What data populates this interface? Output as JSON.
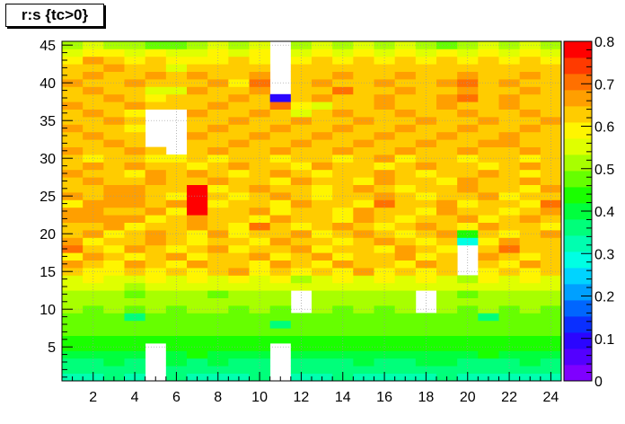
{
  "chart_data": {
    "type": "heatmap",
    "title": "r:s {tc>0}",
    "xlabel": "",
    "ylabel": "",
    "xlim": [
      0.5,
      24.5
    ],
    "ylim": [
      0.5,
      45.5
    ],
    "zlim": [
      0,
      0.8
    ],
    "grid": true,
    "x_ticks": [
      2,
      4,
      6,
      8,
      10,
      12,
      14,
      16,
      18,
      20,
      22,
      24
    ],
    "y_ticks": [
      5,
      10,
      15,
      20,
      25,
      30,
      35,
      40,
      45
    ],
    "z_ticks": [
      0,
      0.1,
      0.2,
      0.3,
      0.4,
      0.5,
      0.6,
      0.7,
      0.8
    ],
    "palette": [
      "#7f00ff",
      "#5300ff",
      "#2b05ff",
      "#0a2fff",
      "#0066ff",
      "#00a0ff",
      "#00d4ff",
      "#00ffe4",
      "#00ffb0",
      "#00ff7a",
      "#00ff3e",
      "#1aff00",
      "#66ff00",
      "#a8ff00",
      "#dfff00",
      "#fff500",
      "#ffcc00",
      "#ff9f00",
      "#ff7000",
      "#ff3a00",
      "#ff0000"
    ],
    "s_values": [
      1,
      2,
      3,
      4,
      5,
      6,
      7,
      8,
      9,
      10,
      11,
      12,
      13,
      14,
      15,
      16,
      17,
      18,
      19,
      20,
      21,
      22,
      23,
      24
    ],
    "r_values": [
      1,
      2,
      3,
      4,
      5,
      6,
      7,
      8,
      9,
      10,
      11,
      12,
      13,
      14,
      15,
      16,
      17,
      18,
      19,
      20,
      21,
      22,
      23,
      24,
      25,
      26,
      27,
      28,
      29,
      30,
      31,
      32,
      33,
      34,
      35,
      36,
      37,
      38,
      39,
      40,
      41,
      42,
      43,
      44,
      45
    ],
    "z_rows": [
      [
        0.33,
        0.33,
        0.35,
        0.34,
        null,
        0.35,
        0.34,
        0.33,
        0.34,
        0.35,
        null,
        0.33,
        0.33,
        0.35,
        0.34,
        0.34,
        0.33,
        0.34,
        0.35,
        0.33,
        0.34,
        0.33,
        0.33,
        0.34
      ],
      [
        0.35,
        0.35,
        0.37,
        0.36,
        null,
        0.37,
        0.36,
        0.35,
        0.36,
        0.37,
        null,
        0.35,
        0.36,
        0.36,
        0.36,
        0.35,
        0.35,
        0.36,
        0.35,
        0.36,
        0.35,
        0.37,
        0.36,
        0.35
      ],
      [
        0.38,
        0.38,
        0.39,
        0.38,
        null,
        0.39,
        0.38,
        0.39,
        0.38,
        0.38,
        null,
        0.38,
        0.38,
        0.38,
        0.39,
        0.38,
        0.38,
        0.39,
        0.39,
        0.38,
        0.38,
        0.38,
        0.39,
        0.38
      ],
      [
        0.4,
        0.41,
        0.4,
        0.41,
        null,
        0.41,
        0.42,
        0.4,
        0.41,
        0.41,
        null,
        0.41,
        0.41,
        0.4,
        0.41,
        0.41,
        0.41,
        0.4,
        0.4,
        0.41,
        0.42,
        0.41,
        0.4,
        0.41
      ],
      [
        0.42,
        0.43,
        0.43,
        0.42,
        null,
        0.44,
        0.43,
        0.42,
        0.43,
        0.42,
        null,
        0.43,
        0.43,
        0.42,
        0.43,
        0.43,
        0.43,
        0.44,
        0.42,
        0.43,
        0.44,
        0.43,
        0.42,
        0.43
      ],
      [
        0.44,
        0.45,
        0.44,
        0.44,
        0.43,
        0.45,
        0.45,
        0.44,
        0.44,
        0.45,
        0.44,
        0.44,
        0.45,
        0.44,
        0.44,
        0.45,
        0.45,
        0.44,
        0.44,
        0.45,
        0.44,
        0.44,
        0.45,
        0.44
      ],
      [
        0.46,
        0.47,
        0.46,
        0.46,
        0.47,
        0.46,
        0.47,
        0.46,
        0.47,
        0.46,
        0.47,
        0.46,
        0.46,
        0.47,
        0.46,
        0.47,
        0.46,
        0.46,
        0.47,
        0.46,
        0.47,
        0.46,
        0.47,
        0.46
      ],
      [
        0.47,
        0.48,
        0.47,
        0.47,
        0.48,
        0.47,
        0.48,
        0.47,
        0.48,
        0.47,
        0.38,
        0.47,
        0.47,
        0.48,
        0.47,
        0.48,
        0.47,
        0.48,
        0.47,
        0.48,
        0.47,
        0.48,
        0.47,
        0.48
      ],
      [
        0.49,
        0.49,
        0.48,
        0.38,
        0.49,
        0.49,
        0.48,
        0.49,
        0.49,
        0.48,
        0.49,
        0.49,
        0.48,
        0.49,
        0.49,
        0.48,
        0.49,
        0.49,
        0.48,
        0.49,
        0.38,
        0.49,
        0.49,
        0.48
      ],
      [
        0.5,
        0.49,
        0.5,
        0.48,
        0.5,
        0.49,
        0.5,
        0.5,
        0.49,
        0.5,
        0.49,
        null,
        0.5,
        0.49,
        0.5,
        0.49,
        0.5,
        null,
        0.5,
        0.49,
        0.5,
        0.49,
        0.5,
        0.49
      ],
      [
        0.51,
        0.52,
        0.51,
        0.5,
        0.51,
        0.51,
        0.52,
        0.51,
        0.51,
        0.52,
        0.51,
        null,
        0.51,
        0.51,
        0.52,
        0.51,
        0.51,
        null,
        0.51,
        0.52,
        0.51,
        0.51,
        0.52,
        0.51
      ],
      [
        0.53,
        0.52,
        0.53,
        0.46,
        0.52,
        0.53,
        0.52,
        0.46,
        0.53,
        0.52,
        0.53,
        null,
        0.52,
        0.53,
        0.52,
        0.53,
        0.52,
        null,
        0.52,
        0.46,
        0.52,
        0.53,
        0.52,
        0.53
      ],
      [
        0.54,
        0.55,
        0.54,
        0.52,
        0.55,
        0.54,
        0.55,
        0.54,
        0.55,
        0.54,
        0.55,
        0.54,
        0.55,
        0.54,
        0.55,
        0.54,
        0.55,
        0.54,
        0.55,
        0.54,
        0.55,
        0.54,
        0.55,
        0.54
      ],
      [
        0.57,
        0.58,
        0.57,
        0.56,
        0.58,
        0.57,
        0.58,
        0.57,
        0.58,
        0.57,
        0.58,
        0.5,
        0.57,
        0.58,
        0.57,
        0.58,
        0.57,
        0.58,
        0.57,
        0.5,
        0.58,
        0.57,
        0.58,
        0.57
      ],
      [
        0.62,
        0.6,
        0.58,
        0.62,
        0.6,
        0.64,
        0.58,
        0.62,
        0.66,
        0.6,
        0.62,
        0.58,
        0.64,
        0.6,
        0.66,
        0.58,
        0.62,
        0.6,
        0.64,
        null,
        0.58,
        0.62,
        0.6,
        0.64
      ],
      [
        0.66,
        0.62,
        0.6,
        0.65,
        0.62,
        0.6,
        0.66,
        0.64,
        0.62,
        0.6,
        0.65,
        0.62,
        0.6,
        0.66,
        0.62,
        0.64,
        0.6,
        0.66,
        0.62,
        null,
        0.64,
        0.6,
        0.66,
        0.62
      ],
      [
        0.6,
        0.66,
        0.62,
        0.58,
        0.64,
        0.66,
        0.6,
        0.62,
        0.64,
        0.66,
        0.6,
        0.62,
        0.66,
        0.6,
        0.64,
        0.62,
        0.66,
        0.6,
        0.62,
        null,
        0.66,
        0.64,
        0.6,
        0.62
      ],
      [
        0.72,
        0.64,
        0.6,
        0.66,
        0.62,
        0.6,
        0.64,
        0.66,
        0.6,
        0.62,
        0.64,
        0.66,
        0.6,
        0.62,
        0.64,
        0.6,
        0.66,
        0.62,
        0.6,
        null,
        0.64,
        0.72,
        0.62,
        0.64
      ],
      [
        0.66,
        0.6,
        0.64,
        0.62,
        0.66,
        0.64,
        0.6,
        0.62,
        0.64,
        0.6,
        0.66,
        0.62,
        0.64,
        0.6,
        0.62,
        0.66,
        0.64,
        0.6,
        0.62,
        0.3,
        0.6,
        0.66,
        0.64,
        0.62
      ],
      [
        0.62,
        0.66,
        0.6,
        0.64,
        0.66,
        0.62,
        0.58,
        0.66,
        0.6,
        0.64,
        0.62,
        0.66,
        0.6,
        0.64,
        0.66,
        0.62,
        0.6,
        0.64,
        0.66,
        0.42,
        0.62,
        0.6,
        0.64,
        0.66
      ],
      [
        0.64,
        0.62,
        0.66,
        0.6,
        0.62,
        0.64,
        0.66,
        0.62,
        0.6,
        0.72,
        0.64,
        0.6,
        0.62,
        0.66,
        0.64,
        0.6,
        0.62,
        0.66,
        0.64,
        0.6,
        0.66,
        0.62,
        0.64,
        0.6
      ],
      [
        0.66,
        0.68,
        0.68,
        0.66,
        0.6,
        0.64,
        0.66,
        0.64,
        0.62,
        0.6,
        0.66,
        0.64,
        0.62,
        0.6,
        0.66,
        0.64,
        0.6,
        0.62,
        0.64,
        0.66,
        0.6,
        0.62,
        0.66,
        0.64
      ],
      [
        0.68,
        0.66,
        0.64,
        0.62,
        0.66,
        0.6,
        0.78,
        0.62,
        0.64,
        0.66,
        0.6,
        0.64,
        0.62,
        0.6,
        0.66,
        0.64,
        0.62,
        0.6,
        0.66,
        0.64,
        0.62,
        0.6,
        0.64,
        0.66
      ],
      [
        0.6,
        0.68,
        0.66,
        0.68,
        0.64,
        0.66,
        0.78,
        0.6,
        0.62,
        0.64,
        0.6,
        0.66,
        0.62,
        0.64,
        0.6,
        0.7,
        0.64,
        0.62,
        0.66,
        0.6,
        0.64,
        0.62,
        0.6,
        0.7
      ],
      [
        0.66,
        0.64,
        0.68,
        0.66,
        0.62,
        0.6,
        0.78,
        0.64,
        0.6,
        0.62,
        0.66,
        0.64,
        0.6,
        0.62,
        0.64,
        0.66,
        0.62,
        0.6,
        0.64,
        0.62,
        0.66,
        0.6,
        0.62,
        0.64
      ],
      [
        0.64,
        0.62,
        0.66,
        0.68,
        0.64,
        0.62,
        0.78,
        0.6,
        0.62,
        0.66,
        0.64,
        0.62,
        0.6,
        0.64,
        0.66,
        0.62,
        0.6,
        0.64,
        0.62,
        0.66,
        0.64,
        0.62,
        0.6,
        0.66
      ],
      [
        0.62,
        0.66,
        0.64,
        0.62,
        0.66,
        0.64,
        0.62,
        0.66,
        0.64,
        0.62,
        0.6,
        0.66,
        0.64,
        0.62,
        0.6,
        0.66,
        0.64,
        0.62,
        0.6,
        0.66,
        0.62,
        0.64,
        0.66,
        0.62
      ],
      [
        0.66,
        0.62,
        0.64,
        0.6,
        0.66,
        0.62,
        0.66,
        0.64,
        0.6,
        0.62,
        0.66,
        0.64,
        0.6,
        0.62,
        0.64,
        0.66,
        0.62,
        0.6,
        0.64,
        0.62,
        0.66,
        0.64,
        0.6,
        0.62
      ],
      [
        0.64,
        0.66,
        0.62,
        0.66,
        0.64,
        0.62,
        0.6,
        0.62,
        0.66,
        0.64,
        0.62,
        0.6,
        0.66,
        0.64,
        0.62,
        0.6,
        0.64,
        0.66,
        0.62,
        0.64,
        0.6,
        0.62,
        0.66,
        0.64
      ],
      [
        0.62,
        0.6,
        0.64,
        0.62,
        0.6,
        0.6,
        0.62,
        0.6,
        0.64,
        0.62,
        0.6,
        0.62,
        0.64,
        0.6,
        0.62,
        0.66,
        0.6,
        0.62,
        0.64,
        0.6,
        0.62,
        0.64,
        0.6,
        0.62
      ],
      [
        0.66,
        0.64,
        0.62,
        0.66,
        0.64,
        null,
        0.64,
        0.66,
        0.62,
        0.64,
        0.66,
        0.62,
        0.64,
        0.66,
        0.62,
        0.64,
        0.66,
        0.62,
        0.64,
        0.66,
        0.62,
        0.64,
        0.66,
        0.62
      ],
      [
        0.64,
        0.62,
        0.66,
        0.64,
        null,
        null,
        0.62,
        0.64,
        0.68,
        0.62,
        0.64,
        0.66,
        0.62,
        0.64,
        0.68,
        0.62,
        0.64,
        0.66,
        0.62,
        0.64,
        0.66,
        0.68,
        0.64,
        0.62
      ],
      [
        0.62,
        0.66,
        0.64,
        0.62,
        null,
        null,
        0.66,
        0.62,
        0.64,
        0.66,
        0.62,
        0.64,
        0.66,
        0.62,
        0.64,
        0.66,
        0.62,
        0.64,
        0.66,
        0.62,
        0.64,
        0.66,
        0.62,
        0.64
      ],
      [
        0.66,
        0.64,
        0.62,
        0.6,
        null,
        null,
        0.64,
        0.66,
        0.62,
        0.64,
        0.66,
        0.62,
        0.64,
        0.66,
        0.62,
        0.64,
        0.66,
        0.62,
        0.64,
        0.66,
        0.62,
        0.64,
        0.66,
        0.62
      ],
      [
        0.64,
        0.62,
        0.66,
        0.64,
        null,
        null,
        0.62,
        0.64,
        0.66,
        0.62,
        0.64,
        0.66,
        0.62,
        0.64,
        0.66,
        0.62,
        0.64,
        0.66,
        0.62,
        0.64,
        0.66,
        0.62,
        0.64,
        0.66
      ],
      [
        0.62,
        0.66,
        0.64,
        0.58,
        null,
        null,
        0.66,
        0.62,
        0.64,
        0.66,
        0.62,
        0.56,
        0.64,
        0.66,
        0.62,
        0.64,
        0.66,
        0.62,
        0.64,
        0.66,
        0.62,
        0.64,
        0.66,
        0.62
      ],
      [
        0.66,
        0.64,
        0.62,
        0.66,
        0.64,
        0.62,
        0.64,
        0.66,
        0.62,
        0.64,
        0.7,
        0.58,
        0.54,
        0.62,
        0.64,
        0.66,
        0.62,
        0.64,
        0.66,
        0.62,
        0.64,
        0.66,
        0.62,
        0.64
      ],
      [
        0.64,
        0.62,
        0.66,
        0.64,
        0.58,
        0.62,
        0.62,
        0.64,
        0.66,
        0.62,
        0.08,
        0.64,
        0.66,
        0.62,
        0.64,
        0.66,
        0.62,
        0.64,
        0.66,
        0.7,
        0.64,
        0.66,
        0.62,
        0.64
      ],
      [
        0.62,
        0.66,
        0.64,
        0.62,
        0.56,
        0.54,
        0.66,
        0.62,
        0.64,
        0.66,
        null,
        0.62,
        0.64,
        0.7,
        0.62,
        0.64,
        0.66,
        0.62,
        0.64,
        0.66,
        0.62,
        0.64,
        0.66,
        0.62
      ],
      [
        0.66,
        0.64,
        0.62,
        0.66,
        0.64,
        0.62,
        0.64,
        0.66,
        0.58,
        0.7,
        null,
        0.64,
        0.66,
        0.62,
        0.64,
        0.66,
        0.62,
        0.64,
        0.66,
        0.7,
        0.64,
        0.66,
        0.62,
        0.64
      ],
      [
        0.64,
        0.66,
        0.62,
        0.64,
        0.66,
        0.62,
        0.66,
        0.64,
        0.62,
        0.66,
        null,
        0.62,
        0.64,
        0.66,
        0.62,
        0.64,
        0.66,
        0.62,
        0.64,
        0.66,
        0.62,
        0.64,
        0.66,
        0.62
      ],
      [
        0.62,
        0.64,
        0.66,
        0.62,
        0.64,
        0.56,
        0.64,
        0.62,
        0.64,
        0.62,
        null,
        0.64,
        0.62,
        0.64,
        0.62,
        0.64,
        0.62,
        0.64,
        0.62,
        0.64,
        0.62,
        0.64,
        0.62,
        0.64
      ],
      [
        0.6,
        0.66,
        0.62,
        0.6,
        0.62,
        0.6,
        0.58,
        0.6,
        0.62,
        0.6,
        null,
        0.6,
        0.62,
        0.6,
        0.62,
        0.6,
        0.62,
        0.6,
        0.62,
        0.6,
        0.62,
        0.6,
        0.62,
        0.6
      ],
      [
        0.56,
        0.6,
        0.58,
        0.56,
        0.58,
        0.54,
        0.56,
        0.58,
        0.56,
        0.58,
        null,
        0.56,
        0.58,
        0.56,
        0.58,
        0.56,
        0.58,
        0.56,
        0.58,
        0.56,
        0.58,
        0.56,
        0.58,
        0.56
      ],
      [
        0.52,
        0.54,
        0.52,
        0.52,
        0.48,
        0.48,
        0.52,
        0.54,
        0.52,
        0.54,
        null,
        0.52,
        0.54,
        0.52,
        0.54,
        0.52,
        0.54,
        0.52,
        0.46,
        0.52,
        0.54,
        0.52,
        0.54,
        0.52
      ]
    ]
  }
}
